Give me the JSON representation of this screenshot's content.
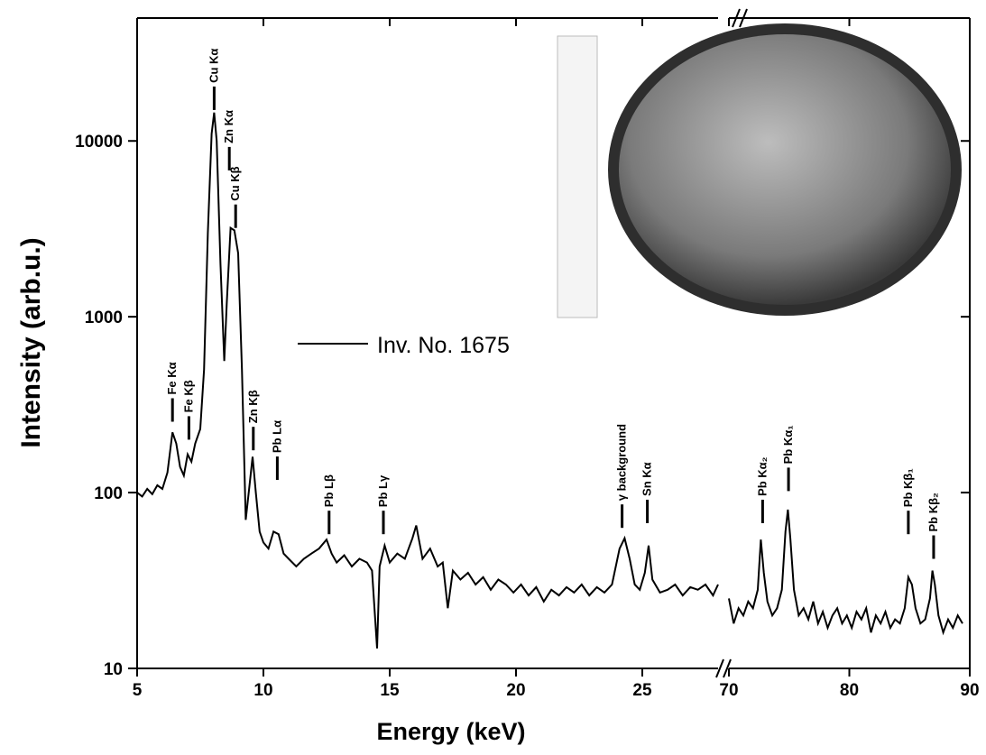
{
  "chart_data": [
    {
      "type": "line",
      "xlabel": "Energy (keV)",
      "ylabel": "Intensity (arb.u.)",
      "log_y": true,
      "xlim": [
        5,
        28
      ],
      "xticks": [
        5,
        10,
        15,
        20,
        25
      ],
      "ylim": [
        10,
        50000
      ],
      "yticks": [
        10,
        100,
        1000,
        10000
      ],
      "x": [
        5.0,
        5.2,
        5.4,
        5.6,
        5.8,
        6.0,
        6.2,
        6.4,
        6.55,
        6.7,
        6.85,
        7.0,
        7.15,
        7.3,
        7.5,
        7.65,
        7.8,
        7.95,
        8.05,
        8.15,
        8.3,
        8.45,
        8.55,
        8.7,
        8.85,
        9.0,
        9.15,
        9.3,
        9.45,
        9.57,
        9.7,
        9.85,
        10.0,
        10.2,
        10.4,
        10.6,
        10.8,
        11.0,
        11.3,
        11.6,
        11.9,
        12.2,
        12.5,
        12.7,
        12.9,
        13.2,
        13.5,
        13.8,
        14.1,
        14.3,
        14.5,
        14.6,
        14.8,
        15.0,
        15.3,
        15.6,
        15.9,
        16.05,
        16.3,
        16.6,
        16.9,
        17.1,
        17.3,
        17.5,
        17.8,
        18.1,
        18.4,
        18.7,
        19.0,
        19.3,
        19.6,
        19.9,
        20.2,
        20.5,
        20.8,
        21.1,
        21.4,
        21.7,
        22.0,
        22.3,
        22.6,
        22.9,
        23.2,
        23.5,
        23.8,
        24.1,
        24.3,
        24.5,
        24.7,
        24.9,
        25.1,
        25.25,
        25.4,
        25.7,
        26.0,
        26.3,
        26.6,
        26.9,
        27.2,
        27.5,
        27.8,
        28.0
      ],
      "series": [
        {
          "name": "Inv. No. 1675",
          "color": "#000000",
          "values": [
            100,
            95,
            105,
            98,
            110,
            105,
            130,
            220,
            190,
            140,
            125,
            165,
            150,
            190,
            230,
            500,
            3000,
            11000,
            14500,
            10000,
            2000,
            560,
            1200,
            3200,
            3100,
            2300,
            500,
            70,
            110,
            160,
            100,
            60,
            52,
            48,
            60,
            58,
            45,
            42,
            38,
            42,
            45,
            48,
            54,
            45,
            40,
            44,
            38,
            42,
            40,
            36,
            13,
            38,
            50,
            40,
            45,
            42,
            55,
            65,
            42,
            48,
            38,
            40,
            22,
            36,
            32,
            35,
            30,
            33,
            28,
            32,
            30,
            27,
            30,
            26,
            29,
            24,
            28,
            26,
            29,
            27,
            30,
            26,
            29,
            27,
            30,
            48,
            55,
            42,
            30,
            28,
            35,
            50,
            32,
            27,
            28,
            30,
            26,
            29,
            28,
            30,
            26,
            30
          ]
        }
      ],
      "annotations": [
        {
          "text": "Fe Kα",
          "x": 6.4,
          "y": 253
        },
        {
          "text": "Fe Kβ",
          "x": 7.05,
          "y": 200
        },
        {
          "text": "Cu Kα",
          "x": 8.05,
          "y": 15000
        },
        {
          "text": "Zn Kα",
          "x": 8.65,
          "y": 6800
        },
        {
          "text": "Cu Kβ",
          "x": 8.9,
          "y": 3200
        },
        {
          "text": "Zn Kβ",
          "x": 9.6,
          "y": 174
        },
        {
          "text": "Pb Lα",
          "x": 10.55,
          "y": 118
        },
        {
          "text": "Pb Lβ",
          "x": 12.6,
          "y": 58
        },
        {
          "text": "Pb Lγ",
          "x": 14.75,
          "y": 58
        },
        {
          "text": "γ background",
          "x": 24.2,
          "y": 63
        },
        {
          "text": "Sn Kα",
          "x": 25.2,
          "y": 67
        }
      ]
    },
    {
      "type": "line",
      "log_y": true,
      "xlim": [
        70,
        90
      ],
      "xticks": [
        70,
        80,
        90
      ],
      "ylim": [
        10,
        50000
      ],
      "yticks": [
        10,
        100,
        1000,
        10000
      ],
      "x": [
        70.0,
        70.4,
        70.8,
        71.2,
        71.6,
        72.0,
        72.4,
        72.65,
        72.9,
        73.2,
        73.6,
        74.0,
        74.4,
        74.7,
        74.9,
        75.1,
        75.4,
        75.8,
        76.2,
        76.6,
        77.0,
        77.4,
        77.8,
        78.2,
        78.6,
        79.0,
        79.4,
        79.8,
        80.2,
        80.6,
        81.0,
        81.4,
        81.8,
        82.2,
        82.6,
        83.0,
        83.4,
        83.8,
        84.2,
        84.6,
        84.9,
        85.2,
        85.5,
        85.9,
        86.3,
        86.7,
        86.9,
        87.1,
        87.4,
        87.8,
        88.2,
        88.6,
        89.0,
        89.4
      ],
      "series": [
        {
          "color": "#000000",
          "values": [
            25,
            18,
            22,
            20,
            24,
            22,
            28,
            54,
            35,
            24,
            20,
            22,
            28,
            60,
            80,
            55,
            28,
            20,
            22,
            19,
            24,
            18,
            21,
            17,
            20,
            22,
            18,
            20,
            17,
            21,
            19,
            22,
            16,
            20,
            18,
            21,
            17,
            19,
            18,
            22,
            33,
            30,
            22,
            18,
            19,
            25,
            36,
            30,
            20,
            16,
            19,
            17,
            20,
            18
          ]
        }
      ],
      "annotations": [
        {
          "text": "Pb Kα₂",
          "x": 72.8,
          "y": 67
        },
        {
          "text": "Pb Kα₁",
          "x": 74.95,
          "y": 102
        },
        {
          "text": "Pb Kβ₁",
          "x": 84.9,
          "y": 58
        },
        {
          "text": "Pb Kβ₂",
          "x": 87.0,
          "y": 42
        }
      ]
    }
  ]
}
